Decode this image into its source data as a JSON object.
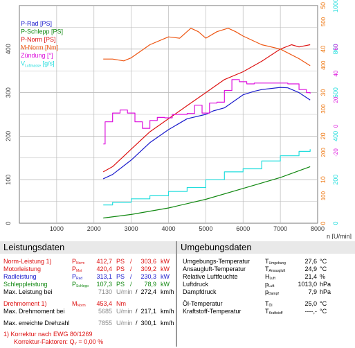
{
  "colors": {
    "p_rad": "#1a1acc",
    "p_schlepp": "#118811",
    "p_norm": "#dd1111",
    "m_norm": "#ee5511",
    "zuendung": "#dd11dd",
    "v_luftmasse": "#22dddd",
    "left_axis": "#444444",
    "axis_orange": "#ee7711",
    "axis_cyan": "#22dddd",
    "axis_magenta": "#dd11dd",
    "grid": "#bbbbbb"
  },
  "chart_data": {
    "type": "line",
    "x_axis": {
      "min": 0,
      "max": 8000,
      "ticks": [
        0,
        1000,
        2000,
        3000,
        4000,
        5000,
        6000,
        7000,
        8000
      ],
      "unit": "n [U/min]"
    },
    "y_left": {
      "min": 0,
      "max": 500,
      "ticks": [
        0,
        100,
        200,
        300,
        400
      ]
    },
    "y_orange": {
      "ticks": [
        "0",
        "10",
        "20",
        "30",
        "40",
        "50"
      ],
      "inner_ticks": [
        "100",
        "200",
        "300",
        "400",
        "500"
      ]
    },
    "y_cyan": {
      "ticks": [
        "0",
        "200",
        "400",
        "600",
        "800",
        "1000"
      ]
    },
    "y_magenta": {
      "ticks": [
        "-20",
        "0",
        "20",
        "40",
        "60"
      ]
    },
    "legend": [
      {
        "key": "p_rad",
        "label": "P-Rad [PS]"
      },
      {
        "key": "p_schlepp",
        "label": "P-Schlepp [PS]"
      },
      {
        "key": "p_norm",
        "label": "P-Norm [PS]"
      },
      {
        "key": "m_norm",
        "label": "M-Norm [Nm]"
      },
      {
        "key": "zuendung",
        "label": "Zündung [°]"
      },
      {
        "key": "v_luftmasse",
        "label": "V",
        "sub": "Luftmasse",
        "suffix": " [g/s]"
      }
    ],
    "series": [
      {
        "key": "p_rad",
        "x": [
          2250,
          2500,
          3000,
          3500,
          4000,
          4500,
          5000,
          5200,
          5500,
          6000,
          6300,
          6500,
          7000,
          7200,
          7500,
          7800
        ],
        "y": [
          102,
          112,
          145,
          185,
          215,
          240,
          250,
          258,
          265,
          295,
          303,
          307,
          312,
          311,
          300,
          283
        ]
      },
      {
        "key": "p_schlepp",
        "x": [
          2250,
          3000,
          4000,
          5000,
          6000,
          7000,
          7800
        ],
        "y": [
          12,
          20,
          35,
          55,
          80,
          105,
          130
        ]
      },
      {
        "key": "p_norm",
        "x": [
          2250,
          2500,
          3000,
          3500,
          4000,
          4500,
          5000,
          5500,
          6000,
          6500,
          7000,
          7300,
          7500,
          7800
        ],
        "y": [
          118,
          130,
          170,
          210,
          240,
          270,
          300,
          330,
          348,
          372,
          400,
          410,
          405,
          410
        ]
      },
      {
        "key": "m_norm",
        "x": [
          2250,
          2500,
          2800,
          3000,
          3500,
          4000,
          4300,
          4600,
          4800,
          5000,
          5300,
          5600,
          5800,
          6000,
          6300,
          6500,
          7000,
          7500,
          7800
        ],
        "y": [
          377,
          377,
          373,
          380,
          410,
          428,
          425,
          448,
          440,
          425,
          440,
          448,
          440,
          430,
          418,
          410,
          400,
          378,
          362
        ]
      },
      {
        "key": "zuendung",
        "x": [
          2250,
          2300,
          2500,
          2700,
          2900,
          3100,
          3300,
          3500,
          3700,
          3900,
          4100,
          4300,
          4500,
          4700,
          4900,
          5100,
          5300,
          5500,
          5700,
          5900,
          6100,
          6300,
          6600,
          6900,
          7200,
          7500,
          7700,
          7800
        ],
        "y": [
          182,
          233,
          253,
          260,
          253,
          233,
          218,
          236,
          243,
          242,
          250,
          250,
          252,
          271,
          253,
          276,
          278,
          305,
          330,
          325,
          320,
          322,
          322,
          322,
          320,
          307,
          300,
          298
        ]
      },
      {
        "key": "v_luftmasse",
        "x": [
          2250,
          2500,
          3000,
          3500,
          4000,
          4500,
          5000,
          5500,
          6000,
          6500,
          7000,
          7500,
          7800
        ],
        "y": [
          42,
          48,
          56,
          63,
          73,
          82,
          100,
          118,
          125,
          143,
          155,
          165,
          170
        ]
      }
    ]
  },
  "leistungsdaten": {
    "title": "Leistungsdaten",
    "rows": [
      {
        "label": "Norm-Leistung",
        "ref": "1)",
        "sym": "P",
        "sub": "Norm",
        "v1": "412,7",
        "u1": "PS",
        "v2": "303,6",
        "u2": "kW",
        "color": "#dd1111"
      },
      {
        "label": "Motorleistung",
        "ref": "",
        "sym": "P",
        "sub": "Mot",
        "v1": "420,4",
        "u1": "PS",
        "v2": "309,2",
        "u2": "kW",
        "color": "#dd1111"
      },
      {
        "label": "Radleistung",
        "ref": "",
        "sym": "P",
        "sub": "Rad",
        "v1": "313,1",
        "u1": "PS",
        "v2": "230,3",
        "u2": "kW",
        "color": "#1a1acc"
      },
      {
        "label": "Schleppleistung",
        "ref": "",
        "sym": "P",
        "sub": "Schlepp",
        "v1": "107,3",
        "u1": "PS",
        "v2": "78,9",
        "u2": "kW",
        "color": "#118811"
      }
    ],
    "max_leistung": {
      "label": "Max. Leistung bei",
      "v1": "7130",
      "u1": "U/min",
      "v2": "272,4",
      "u2": "km/h"
    },
    "drehmoment": {
      "label": "Drehmoment",
      "ref": "1)",
      "sym": "M",
      "sub": "Norm",
      "v1": "453,4",
      "u1": "Nm",
      "color": "#dd1111"
    },
    "max_drehmoment": {
      "label": "Max. Drehmoment bei",
      "v1": "5685",
      "u1": "U/min",
      "v2": "217,1",
      "u2": "km/h"
    },
    "max_drehzahl": {
      "label": "Max. erreichte Drehzahl",
      "v1": "7855",
      "u1": "U/min",
      "v2": "300,1",
      "u2": "km/h"
    },
    "korrektur": "1) Korrektur nach EWG 80/1269",
    "korrektur_faktoren": "Korrektur-Faktoren: Q",
    "korrektur_sub": "V",
    "korrektur_value": " =   0,00 %"
  },
  "umgebungsdaten": {
    "title": "Umgebungsdaten",
    "rows": [
      {
        "label": "Umgebungs-Temperatur",
        "sym": "T",
        "sub": "Umgebung",
        "v": "27,6",
        "u": "°C"
      },
      {
        "label": "Ansaugluft-Temperatur",
        "sym": "T",
        "sub": "Ansaugluft",
        "v": "24,9",
        "u": "°C"
      },
      {
        "label": "Relative Luftfeuchte",
        "sym": "H",
        "sub": "Luft",
        "v": "21,4",
        "u": "%"
      },
      {
        "label": "Luftdruck",
        "sym": "p",
        "sub": "Luft",
        "v": "1013,0",
        "u": "hPa"
      },
      {
        "label": "Dampfdruck",
        "sym": "p",
        "sub": "Dampf",
        "v": "7,9",
        "u": "hPa"
      },
      {
        "label": "Öl-Temperatur",
        "sym": "T",
        "sub": "Öl",
        "v": "25,0",
        "u": "°C"
      },
      {
        "label": "Kraftstoff-Temperatur",
        "sym": "T",
        "sub": "Kraftstoff",
        "v": "----,-",
        "u": "°C"
      }
    ]
  }
}
